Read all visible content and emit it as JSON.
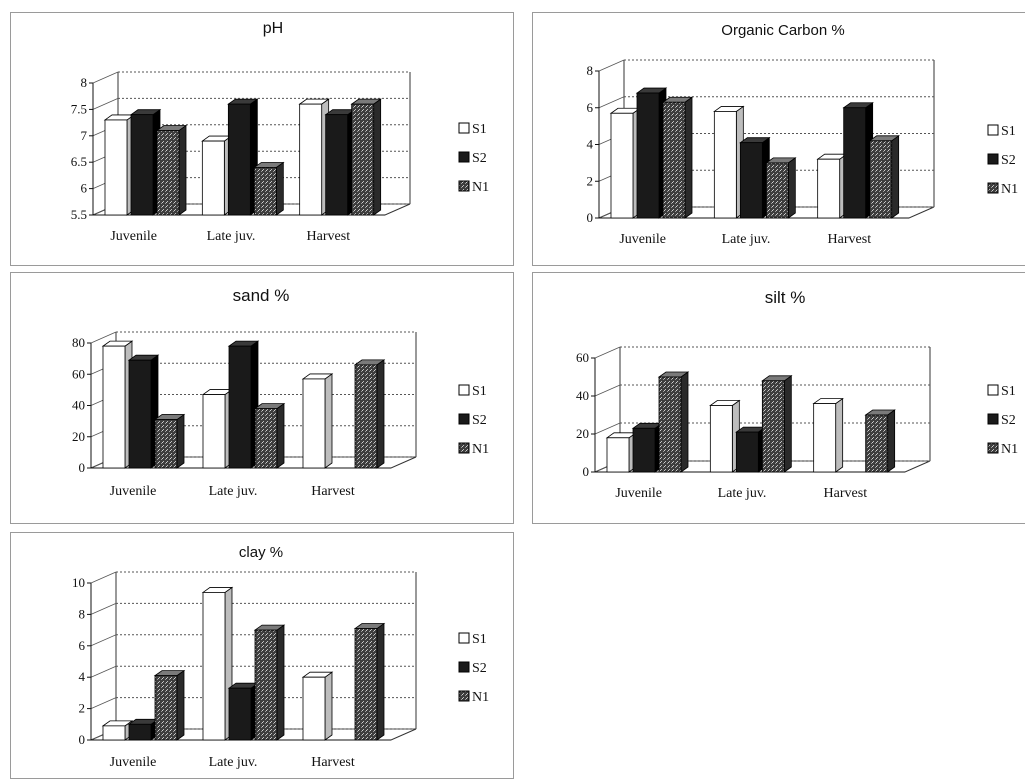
{
  "chart_data": [
    {
      "type": "bar",
      "title": "pH",
      "categories": [
        "Juvenile",
        "Late juv.",
        "Harvest"
      ],
      "series": [
        {
          "name": "S1",
          "values": [
            7.3,
            6.9,
            7.6
          ]
        },
        {
          "name": "S2",
          "values": [
            7.4,
            7.6,
            7.4
          ]
        },
        {
          "name": "N1",
          "values": [
            7.1,
            6.4,
            7.6
          ]
        }
      ],
      "ylim": [
        5.5,
        8
      ],
      "yticks": [
        "5.5",
        "6",
        "6.5",
        "7",
        "7.5",
        "8"
      ],
      "legend": "right",
      "grid": true
    },
    {
      "type": "bar",
      "title": "Organic Carbon %",
      "categories": [
        "Juvenile",
        "Late juv.",
        "Harvest"
      ],
      "series": [
        {
          "name": "S1",
          "values": [
            5.7,
            5.8,
            3.2
          ]
        },
        {
          "name": "S2",
          "values": [
            6.8,
            4.1,
            6.0
          ]
        },
        {
          "name": "N1",
          "values": [
            6.3,
            3.0,
            4.2
          ]
        }
      ],
      "ylim": [
        0,
        8
      ],
      "yticks": [
        "0",
        "2",
        "4",
        "6",
        "8"
      ],
      "legend": "right",
      "grid": true
    },
    {
      "type": "bar",
      "title": "sand %",
      "categories": [
        "Juvenile",
        "Late juv.",
        "Harvest"
      ],
      "series": [
        {
          "name": "S1",
          "values": [
            78,
            47,
            57
          ]
        },
        {
          "name": "S2",
          "values": [
            69,
            78,
            0
          ]
        },
        {
          "name": "N1",
          "values": [
            31,
            38,
            66
          ]
        }
      ],
      "ylim": [
        0,
        80
      ],
      "yticks": [
        "0",
        "20",
        "40",
        "60",
        "80"
      ],
      "legend": "right",
      "grid": true
    },
    {
      "type": "bar",
      "title": "silt %",
      "categories": [
        "Juvenile",
        "Late juv.",
        "Harvest"
      ],
      "series": [
        {
          "name": "S1",
          "values": [
            18,
            35,
            36
          ]
        },
        {
          "name": "S2",
          "values": [
            23,
            21,
            0
          ]
        },
        {
          "name": "N1",
          "values": [
            50,
            48,
            30
          ]
        }
      ],
      "ylim": [
        0,
        60
      ],
      "yticks": [
        "0",
        "20",
        "40",
        "60"
      ],
      "legend": "right",
      "grid": true
    },
    {
      "type": "bar",
      "title": "clay %",
      "categories": [
        "Juvenile",
        "Late juv.",
        "Harvest"
      ],
      "series": [
        {
          "name": "S1",
          "values": [
            0.9,
            9.4,
            4.0
          ]
        },
        {
          "name": "S2",
          "values": [
            1.0,
            3.3,
            0
          ]
        },
        {
          "name": "N1",
          "values": [
            4.1,
            7.0,
            7.1
          ]
        }
      ],
      "ylim": [
        0,
        10
      ],
      "yticks": [
        "0",
        "2",
        "4",
        "6",
        "8",
        "10"
      ],
      "legend": "right",
      "grid": true
    }
  ],
  "colors": {
    "s1_fill": "#ffffff",
    "s2_fill": "#1a1a1a",
    "n1_fill": "#4a4a4a",
    "grid": "#555555"
  }
}
